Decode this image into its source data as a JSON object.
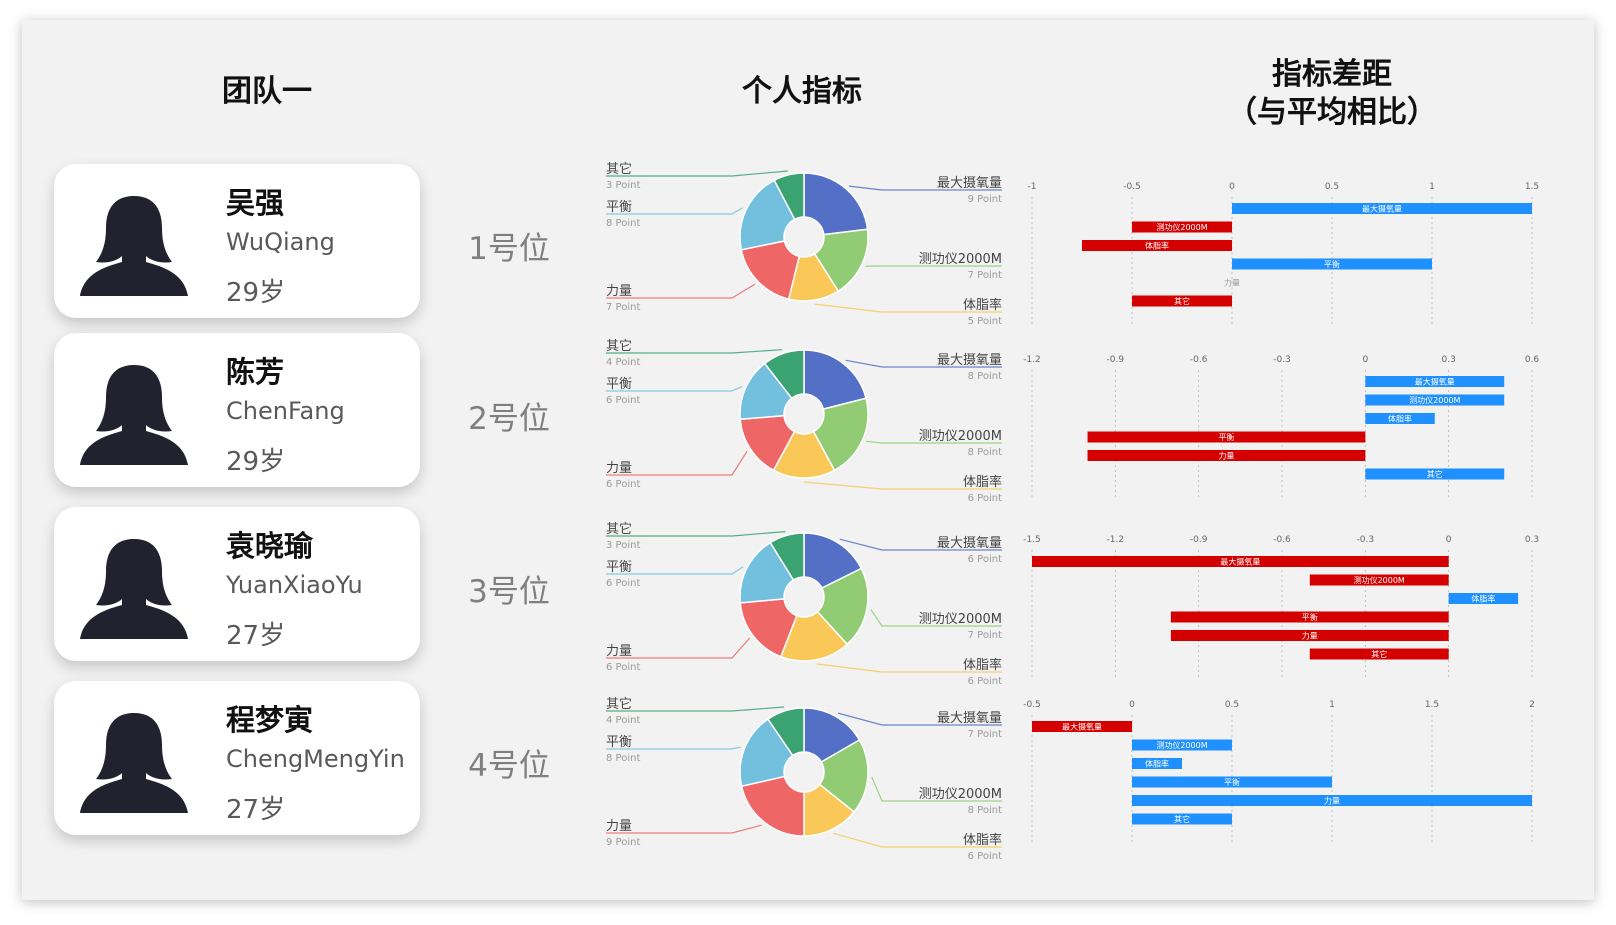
{
  "headers": {
    "team": "团队一",
    "individual": "个人指标",
    "gap_line1": "指标差距",
    "gap_line2": "（与平均相比）"
  },
  "people": [
    {
      "name": "吴强",
      "pinyin": "WuQiang",
      "age": "29岁",
      "rank": "1号位"
    },
    {
      "name": "陈芳",
      "pinyin": "ChenFang",
      "age": "29岁",
      "rank": "2号位"
    },
    {
      "name": "袁晓瑜",
      "pinyin": "YuanXiaoYu",
      "age": "27岁",
      "rank": "3号位"
    },
    {
      "name": "程梦寅",
      "pinyin": "ChengMengYin",
      "age": "27岁",
      "rank": "4号位"
    }
  ],
  "slice_colors": {
    "最大摄氧量": "#5470c6",
    "测功仪2000M": "#91cc75",
    "体脂率": "#fac858",
    "力量": "#ee6666",
    "平衡": "#73c0de",
    "其它": "#3ba272"
  },
  "bar_colors": {
    "positive": "#1e90ff",
    "negative": "#d40000"
  },
  "chart_data": [
    {
      "type": "pie",
      "title": "1号位",
      "donut": true,
      "categories": [
        "最大摄氧量",
        "测功仪2000M",
        "体脂率",
        "力量",
        "平衡",
        "其它"
      ],
      "values": [
        9,
        7,
        5,
        7,
        8,
        3
      ],
      "value_labels": [
        "9 Point",
        "7 Point",
        "5 Point",
        "7 Point",
        "8 Point",
        "3 Point"
      ]
    },
    {
      "type": "bar",
      "orientation": "horizontal",
      "title": "1号位",
      "categories": [
        "最大摄氧量",
        "测功仪2000M",
        "体脂率",
        "平衡",
        "力量",
        "其它"
      ],
      "values": [
        1.5,
        -0.5,
        -0.75,
        1.0,
        0,
        -0.5
      ],
      "xlim": [
        -1,
        1.5
      ],
      "xticks": [
        -1,
        -0.5,
        0,
        0.5,
        1,
        1.5
      ],
      "tick_labels": [
        "-1",
        "-0.5",
        "0",
        "0.5",
        "1",
        "1.5"
      ]
    },
    {
      "type": "pie",
      "title": "2号位",
      "donut": true,
      "categories": [
        "最大摄氧量",
        "测功仪2000M",
        "体脂率",
        "力量",
        "平衡",
        "其它"
      ],
      "values": [
        8,
        8,
        6,
        6,
        6,
        4
      ],
      "value_labels": [
        "8 Point",
        "8 Point",
        "6 Point",
        "6 Point",
        "6 Point",
        "4 Point"
      ]
    },
    {
      "type": "bar",
      "orientation": "horizontal",
      "title": "2号位",
      "categories": [
        "最大摄氧量",
        "测功仪2000M",
        "体脂率",
        "平衡",
        "力量",
        "其它"
      ],
      "values": [
        0.5,
        0.5,
        0.25,
        -1.0,
        -1.0,
        0.5
      ],
      "xlim": [
        -1.2,
        0.6
      ],
      "xticks": [
        -1.2,
        -0.9,
        -0.6,
        -0.3,
        0,
        0.3,
        0.6
      ],
      "tick_labels": [
        "-1.2",
        "-0.9",
        "-0.6",
        "-0.3",
        "0",
        "0.3",
        "0.6"
      ]
    },
    {
      "type": "pie",
      "title": "3号位",
      "donut": true,
      "categories": [
        "最大摄氧量",
        "测功仪2000M",
        "体脂率",
        "力量",
        "平衡",
        "其它"
      ],
      "values": [
        6,
        7,
        6,
        6,
        6,
        3
      ],
      "value_labels": [
        "6 Point",
        "7 Point",
        "6 Point",
        "6 Point",
        "6 Point",
        "3 Point"
      ]
    },
    {
      "type": "bar",
      "orientation": "horizontal",
      "title": "3号位",
      "categories": [
        "最大摄氧量",
        "测功仪2000M",
        "体脂率",
        "平衡",
        "力量",
        "其它"
      ],
      "values": [
        -1.5,
        -0.5,
        0.25,
        -1.0,
        -1.0,
        -0.5
      ],
      "xlim": [
        -1.5,
        0.3
      ],
      "xticks": [
        -1.5,
        -1.2,
        -0.9,
        -0.6,
        -0.3,
        0,
        0.3
      ],
      "tick_labels": [
        "-1.5",
        "-1.2",
        "-0.9",
        "-0.6",
        "-0.3",
        "0",
        "0.3"
      ]
    },
    {
      "type": "pie",
      "title": "4号位",
      "donut": true,
      "categories": [
        "最大摄氧量",
        "测功仪2000M",
        "体脂率",
        "力量",
        "平衡",
        "其它"
      ],
      "values": [
        7,
        8,
        6,
        9,
        8,
        4
      ],
      "value_labels": [
        "7 Point",
        "8 Point",
        "6 Point",
        "9 Point",
        "8 Point",
        "4 Point"
      ]
    },
    {
      "type": "bar",
      "orientation": "horizontal",
      "title": "4号位",
      "categories": [
        "最大摄氧量",
        "测功仪2000M",
        "体脂率",
        "平衡",
        "力量",
        "其它"
      ],
      "values": [
        -0.5,
        0.5,
        0.25,
        1.0,
        2.0,
        0.5
      ],
      "xlim": [
        -0.5,
        2
      ],
      "xticks": [
        -0.5,
        0,
        0.5,
        1,
        1.5,
        2
      ],
      "tick_labels": [
        "-0.5",
        "0",
        "0.5",
        "1",
        "1.5",
        "2"
      ]
    }
  ]
}
